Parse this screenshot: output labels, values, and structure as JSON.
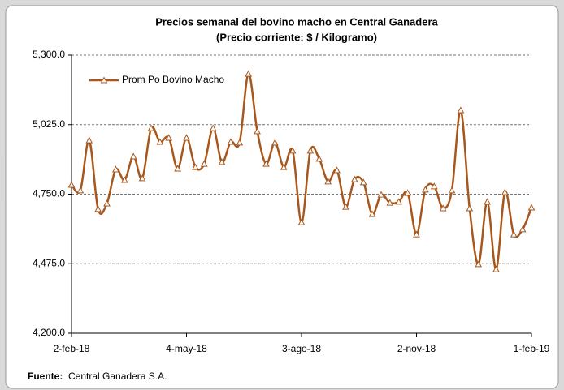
{
  "chart_data": {
    "type": "line",
    "title": "Precios semanal del bovino macho en Central Ganadera",
    "subtitle": "(Precio corriente: $ / Kilogramo)",
    "categories": [
      "2-feb-18",
      null,
      null,
      null,
      null,
      null,
      null,
      null,
      null,
      null,
      null,
      null,
      null,
      "4-may-18",
      null,
      null,
      null,
      null,
      null,
      null,
      null,
      null,
      null,
      null,
      null,
      null,
      "3-ago-18",
      null,
      null,
      null,
      null,
      null,
      null,
      null,
      null,
      null,
      null,
      null,
      null,
      "2-nov-18",
      null,
      null,
      null,
      null,
      null,
      null,
      null,
      null,
      null,
      null,
      null,
      null,
      "1-feb-19"
    ],
    "series": [
      {
        "name": "Prom Po Bovino Macho",
        "color": "#a8571c",
        "values": [
          4787,
          4765,
          4963,
          4691,
          4713,
          4848,
          4806,
          4899,
          4813,
          5011,
          4957,
          4973,
          4851,
          4973,
          4857,
          4870,
          5011,
          4877,
          4957,
          4954,
          5226,
          4999,
          4870,
          4954,
          4857,
          4922,
          4639,
          4922,
          4890,
          4800,
          4845,
          4700,
          4809,
          4797,
          4671,
          4748,
          4716,
          4720,
          4755,
          4591,
          4768,
          4781,
          4694,
          4765,
          5082,
          4694,
          4473,
          4720,
          4453,
          4758,
          4591,
          4611,
          4697
        ]
      }
    ],
    "ylim": [
      4200,
      5300
    ],
    "yticks": [
      {
        "value": 4200,
        "label": "4,200.0"
      },
      {
        "value": 4475,
        "label": "4,475.0"
      },
      {
        "value": 4750,
        "label": "4,750.0"
      },
      {
        "value": 5025,
        "label": "5,025.0"
      },
      {
        "value": 5300,
        "label": "5,300.0"
      }
    ],
    "grid": true,
    "source_label": "Fuente:",
    "source": "Central Ganadera S.A."
  }
}
